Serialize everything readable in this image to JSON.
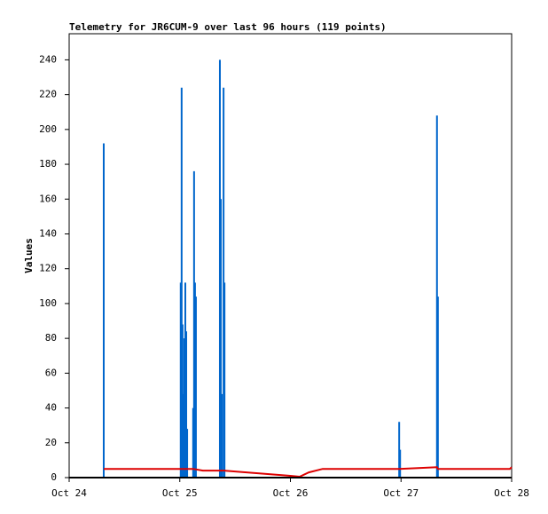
{
  "chart_data": {
    "type": "impulse",
    "title": "Telemetry for JR6CUM-9 over last 96 hours (119 points)",
    "ylabel": "Values",
    "xlim": [
      0,
      96
    ],
    "xticks": [
      {
        "value": 0,
        "label": "Oct 24"
      },
      {
        "value": 24,
        "label": "Oct 25"
      },
      {
        "value": 48,
        "label": "Oct 26"
      },
      {
        "value": 72,
        "label": "Oct 27"
      },
      {
        "value": 96,
        "label": "Oct 28"
      }
    ],
    "ylim": [
      0,
      255
    ],
    "yticks": [
      0,
      20,
      40,
      60,
      80,
      100,
      120,
      140,
      160,
      180,
      200,
      220,
      240
    ],
    "grid": false,
    "series": [
      {
        "color": "#0066cc",
        "mark": "impulse",
        "x": [
          7.5,
          24.2,
          24.4,
          24.6,
          24.8,
          25.0,
          25.2,
          25.4,
          25.6,
          26.9,
          27.1,
          27.3,
          27.5,
          32.7,
          32.9,
          33.1,
          33.5,
          33.7,
          71.6,
          71.8,
          79.8,
          80.0
        ],
        "values": [
          192,
          112,
          224,
          88,
          48,
          80,
          112,
          84,
          28,
          40,
          176,
          112,
          104,
          240,
          160,
          48,
          224,
          112,
          32,
          16,
          208,
          104
        ]
      },
      {
        "color": "#dd0000",
        "mark": "line",
        "x": [
          7.5,
          24,
          26.9,
          29,
          33.7,
          48,
          50,
          52,
          55,
          71.6,
          79.8,
          80,
          95.6,
          96
        ],
        "values": [
          5,
          5,
          5,
          4,
          4,
          1,
          0.5,
          3,
          5,
          5,
          6,
          5,
          5,
          6
        ]
      },
      {
        "color": "#000000",
        "mark": "line",
        "x": [
          0,
          96
        ],
        "values": [
          0,
          0
        ]
      }
    ]
  }
}
